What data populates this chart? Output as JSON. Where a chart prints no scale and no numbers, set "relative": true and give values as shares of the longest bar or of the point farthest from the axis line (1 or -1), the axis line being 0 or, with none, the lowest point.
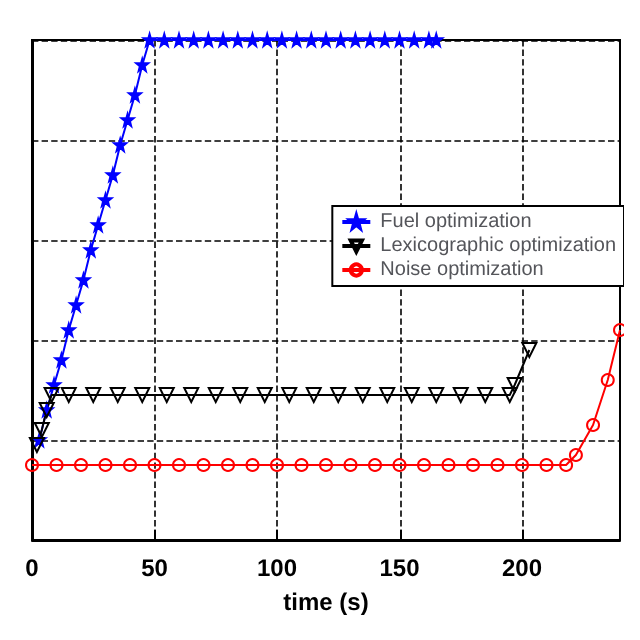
{
  "chart_data": {
    "type": "line",
    "xlabel": "time (s)",
    "xlim": [
      0,
      240
    ],
    "xticks": [
      0,
      50,
      100,
      150,
      200
    ],
    "relative": true,
    "grid": true,
    "legend": "right",
    "line_style": "solid",
    "series": [
      {
        "name": "Fuel optimization",
        "color": "#0000ff",
        "marker": "star",
        "x": [
          3,
          6,
          9,
          12,
          15,
          18,
          21,
          24,
          27,
          30,
          33,
          36,
          39,
          42,
          45,
          48,
          54,
          60,
          66,
          72,
          78,
          84,
          90,
          96,
          102,
          108,
          114,
          120,
          126,
          132,
          138,
          144,
          150,
          156,
          162,
          165
        ],
        "values": [
          0.2,
          0.26,
          0.31,
          0.36,
          0.42,
          0.47,
          0.52,
          0.58,
          0.63,
          0.68,
          0.73,
          0.79,
          0.84,
          0.89,
          0.95,
          1.0,
          1.0,
          1.0,
          1.0,
          1.0,
          1.0,
          1.0,
          1.0,
          1.0,
          1.0,
          1.0,
          1.0,
          1.0,
          1.0,
          1.0,
          1.0,
          1.0,
          1.0,
          1.0,
          1.0,
          1.0
        ]
      },
      {
        "name": "Lexicographic optimization",
        "color": "#000000",
        "marker": "triangle",
        "x": [
          2,
          4,
          6,
          8,
          15,
          25,
          35,
          45,
          55,
          65,
          75,
          85,
          95,
          105,
          115,
          125,
          135,
          145,
          155,
          165,
          175,
          185,
          195,
          197,
          203
        ],
        "values": [
          0.19,
          0.22,
          0.26,
          0.29,
          0.29,
          0.29,
          0.29,
          0.29,
          0.29,
          0.29,
          0.29,
          0.29,
          0.29,
          0.29,
          0.29,
          0.29,
          0.29,
          0.29,
          0.29,
          0.29,
          0.29,
          0.29,
          0.29,
          0.31,
          0.38
        ]
      },
      {
        "name": "Noise optimization",
        "color": "#ff0000",
        "marker": "circle",
        "x": [
          0,
          10,
          20,
          30,
          40,
          50,
          60,
          70,
          80,
          90,
          100,
          110,
          120,
          130,
          140,
          150,
          160,
          170,
          180,
          190,
          200,
          210,
          218,
          222,
          229,
          235,
          240
        ],
        "values": [
          0.15,
          0.15,
          0.15,
          0.15,
          0.15,
          0.15,
          0.15,
          0.15,
          0.15,
          0.15,
          0.15,
          0.15,
          0.15,
          0.15,
          0.15,
          0.15,
          0.15,
          0.15,
          0.15,
          0.15,
          0.15,
          0.15,
          0.15,
          0.17,
          0.23,
          0.32,
          0.42
        ]
      }
    ]
  }
}
